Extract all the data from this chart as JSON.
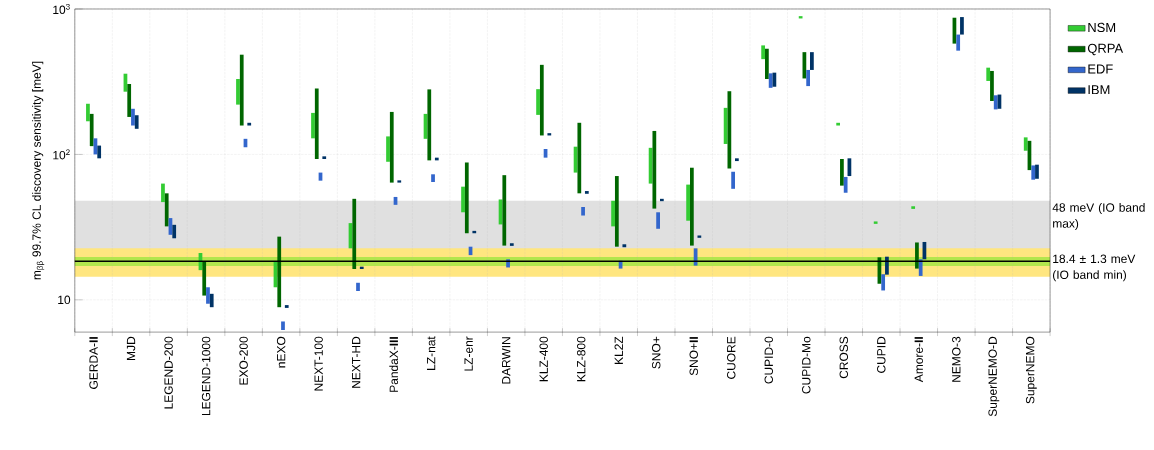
{
  "chart_data": {
    "type": "bar",
    "ylabel": "m$_{ββ}$ 99.7% CL discovery sensitivity [meV]",
    "categories": [
      "GERDA-**II**",
      "MJD",
      "LEGEND-200",
      "LEGEND-1000",
      "EXO-200",
      "nEXO",
      "NEXT-100",
      "NEXT-HD",
      "PandaX-**III**",
      "LZ-nat",
      "LZ-enr",
      "DARWIN",
      "KLZ-400",
      "KLZ-800",
      "KL2Z",
      "SNO+",
      "SNO+**II**",
      "CUORE",
      "CUPID-0",
      "CUPID-Mo",
      "CROSS",
      "CUPID",
      "Amore-**II**",
      "NEMO-3",
      "SuperNEMO-D",
      "SuperNEMO"
    ],
    "series": [
      {
        "name": "NSM",
        "color": "#33cc33",
        "base": [
          169,
          270,
          47,
          16,
          220,
          12.2,
          129,
          22.6,
          89,
          128,
          40,
          33,
          187,
          75,
          32,
          63,
          35,
          118,
          452,
          861,
          158,
          33.3,
          42.2,
          null,
          320,
          106
        ],
        "values": [
          54,
          89,
          16,
          5,
          110,
          6.3,
          64,
          11.1,
          44,
          62,
          20,
          16,
          94,
          38,
          16,
          48,
          27,
          91,
          110,
          32,
          7,
          1.3,
          1.8,
          null,
          75,
          25
        ]
      },
      {
        "name": "QRPA",
        "color": "#006600",
        "base": [
          114,
          181,
          32,
          10.7,
          158,
          8.9,
          93,
          16.3,
          64,
          91,
          28.7,
          23.6,
          135,
          54,
          23.2,
          42.4,
          23.6,
          80,
          330,
          333,
          61,
          12.9,
          16.4,
          578,
          233,
          78
        ],
        "values": [
          76,
          124,
          22,
          7.6,
          327,
          18.3,
          191,
          33.2,
          132,
          189,
          59.3,
          48.4,
          278,
          111,
          47.8,
          102.6,
          57.4,
          192,
          203,
          172,
          32,
          6.7,
          8.4,
          293,
          142,
          46
        ]
      },
      {
        "name": "EDF",
        "color": "#3366cc",
        "base": [
          100,
          158,
          28,
          9.4,
          112,
          6.2,
          66,
          11.5,
          45,
          64.6,
          20.3,
          16.7,
          95,
          38,
          16.4,
          30.8,
          17.2,
          58,
          287,
          295,
          54.5,
          11.6,
          14.6,
          517,
          204,
          67
        ],
        "values": [
          29,
          48,
          8.5,
          2.8,
          16,
          0.9,
          9,
          1.6,
          6,
          8.4,
          2.9,
          2.3,
          14,
          5.5,
          2.2,
          9.2,
          5.4,
          18,
          74,
          86,
          15.5,
          3.4,
          4.4,
          150,
          51,
          17
        ]
      },
      {
        "name": "IBM",
        "color": "#003366",
        "base": [
          94,
          150,
          26.5,
          8.9,
          158,
          8.8,
          93,
          16.3,
          64,
          91,
          28.7,
          23.5,
          135,
          53.6,
          23,
          47.7,
          26.7,
          90,
          292,
          381,
          71,
          14.9,
          19,
          667,
          206,
          68
        ],
        "values": [
          21,
          36,
          6.3,
          2.1,
          7,
          0.4,
          4,
          0.6,
          2.3,
          4,
          1.1,
          1,
          5,
          2.4,
          1.1,
          1.8,
          1,
          4,
          73,
          124,
          23,
          4.9,
          6,
          213,
          52,
          17
        ]
      }
    ],
    "ylim": [
      6,
      1000
    ],
    "log": true,
    "yticks": [
      10,
      {
        "value": 100,
        "label": "10$^{2}$"
      },
      {
        "value": 1000,
        "label": "10$^{3}$"
      }
    ],
    "grid": true,
    "legend": "top right",
    "bands": [
      {
        "axis": "y",
        "from": 18.4,
        "to": 48,
        "label": "48 meV (IO band max)",
        "color": "#e0e0e0"
      },
      {
        "axis": "y",
        "from": 14.4,
        "to": 22.6,
        "color": "#ffe680"
      },
      {
        "axis": "y",
        "from": 17.1,
        "to": 19.7,
        "color": "#b3e64d"
      }
    ],
    "ref_lines": [
      {
        "axis": "y",
        "value": 18.4,
        "label": "18.4 ± 1.3 meV (IO band min)",
        "color": "#000000"
      }
    ]
  }
}
